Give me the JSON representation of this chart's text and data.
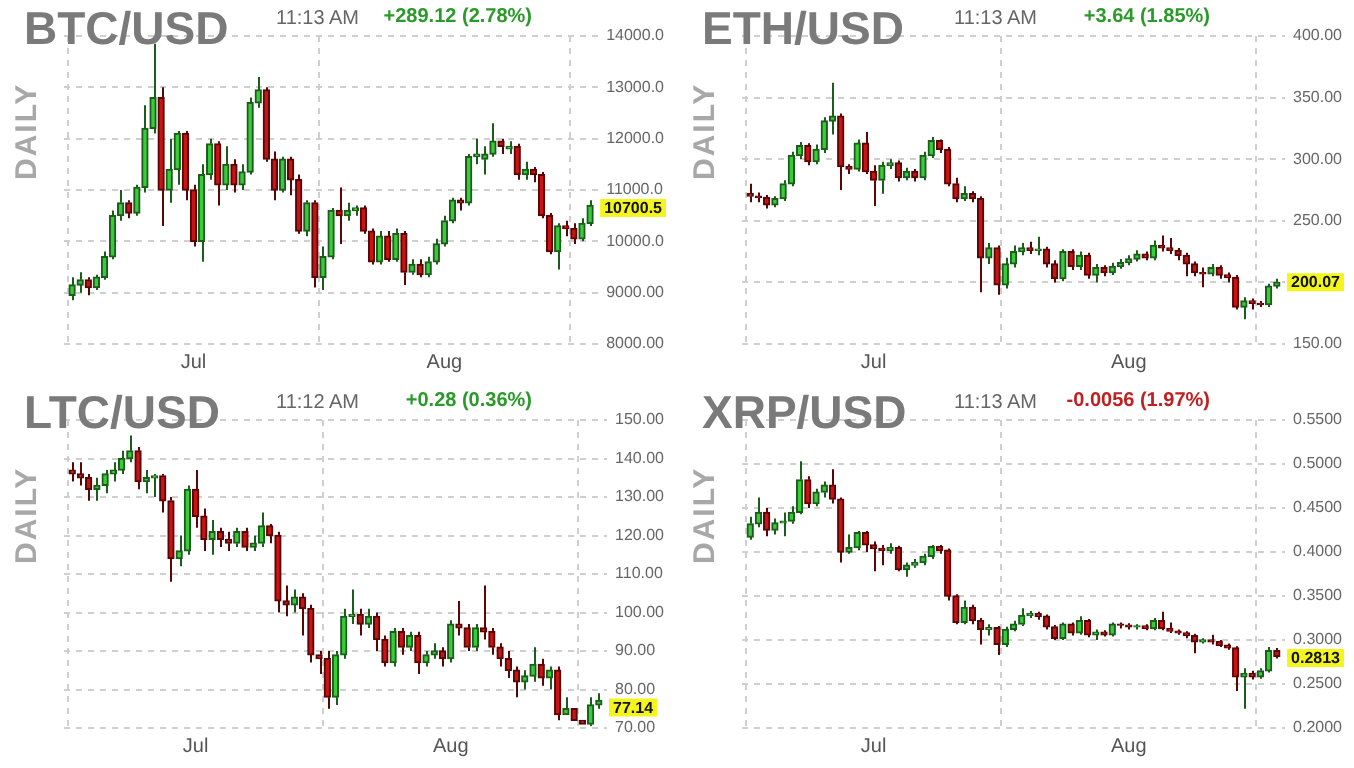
{
  "chart_data": [
    {
      "type": "candlestick",
      "title": "BTC/USD",
      "ylabel": "DAILY",
      "annotations": [
        "11:13 AM",
        "+289.12 (2.78%)",
        {
          "text": "10700.5",
          "x": "--08-19",
          "y": 10700.5
        }
      ],
      "x": [
        "--06-16",
        "--06-17",
        "--06-18",
        "--06-19",
        "--06-20",
        "--06-21",
        "--06-22",
        "--06-23",
        "--06-24",
        "--06-25",
        "--06-26",
        "--06-27",
        "--06-28",
        "--06-29",
        "--06-30",
        "--07-01",
        "--07-02",
        "--07-03",
        "--07-04",
        "--07-05",
        "--07-06",
        "--07-07",
        "--07-08",
        "--07-09",
        "--07-10",
        "--07-11",
        "--07-12",
        "--07-13",
        "--07-14",
        "--07-15",
        "--07-16",
        "--07-17",
        "--07-18",
        "--07-19",
        "--07-20",
        "--07-21",
        "--07-22",
        "--07-23",
        "--07-24",
        "--07-25",
        "--07-26",
        "--07-27",
        "--07-28",
        "--07-29",
        "--07-30",
        "--07-31",
        "--08-01",
        "--08-02",
        "--08-03",
        "--08-04",
        "--08-05",
        "--08-06",
        "--08-07",
        "--08-08",
        "--08-09",
        "--08-10",
        "--08-11",
        "--08-12",
        "--08-13",
        "--08-14",
        "--08-15",
        "--08-16",
        "--08-17",
        "--08-18",
        "--08-19"
      ],
      "ohlc": [
        [
          8950,
          9300,
          8850,
          9150
        ],
        [
          9150,
          9400,
          9000,
          9250
        ],
        [
          9250,
          9300,
          8950,
          9100
        ],
        [
          9100,
          9350,
          9050,
          9300
        ],
        [
          9300,
          9800,
          9250,
          9700
        ],
        [
          9700,
          10600,
          9650,
          10500
        ],
        [
          10500,
          11000,
          10400,
          10750
        ],
        [
          10750,
          10800,
          10450,
          10550
        ],
        [
          10550,
          11100,
          10500,
          11050
        ],
        [
          11050,
          12650,
          10950,
          12200
        ],
        [
          12200,
          13850,
          12100,
          12800
        ],
        [
          12800,
          13000,
          10300,
          11000
        ],
        [
          11000,
          12000,
          10750,
          11400
        ],
        [
          11400,
          12150,
          11100,
          12100
        ],
        [
          12100,
          12150,
          10800,
          11000
        ],
        [
          11000,
          11100,
          9900,
          10000
        ],
        [
          10000,
          11500,
          9600,
          11300
        ],
        [
          11300,
          12000,
          11200,
          11900
        ],
        [
          11900,
          11950,
          10700,
          11100
        ],
        [
          11100,
          11850,
          11000,
          11500
        ],
        [
          11500,
          11600,
          10950,
          11100
        ],
        [
          11100,
          11500,
          11000,
          11350
        ],
        [
          11350,
          12800,
          11300,
          12700
        ],
        [
          12700,
          13200,
          12600,
          12950
        ],
        [
          12950,
          13000,
          11550,
          11600
        ],
        [
          11600,
          11750,
          10800,
          11000
        ],
        [
          11000,
          11650,
          10950,
          11600
        ],
        [
          11600,
          11650,
          10900,
          11200
        ],
        [
          11200,
          11300,
          10150,
          10200
        ],
        [
          10200,
          10800,
          10100,
          10750
        ],
        [
          10750,
          10800,
          9100,
          9300
        ],
        [
          9300,
          9900,
          9050,
          9700
        ],
        [
          9700,
          10650,
          9650,
          10600
        ],
        [
          10600,
          11050,
          9950,
          10500
        ],
        [
          10500,
          10750,
          10400,
          10600
        ],
        [
          10600,
          10700,
          10500,
          10650
        ],
        [
          10650,
          10700,
          10150,
          10200
        ],
        [
          10200,
          10250,
          9550,
          9600
        ],
        [
          9600,
          10200,
          9550,
          10100
        ],
        [
          10100,
          10200,
          9600,
          9650
        ],
        [
          9650,
          10250,
          9600,
          10150
        ],
        [
          10150,
          10200,
          9150,
          9400
        ],
        [
          9400,
          9650,
          9350,
          9550
        ],
        [
          9550,
          9650,
          9300,
          9350
        ],
        [
          9350,
          9700,
          9300,
          9600
        ],
        [
          9600,
          10050,
          9550,
          9950
        ],
        [
          9950,
          10500,
          9900,
          10400
        ],
        [
          10400,
          10850,
          10350,
          10800
        ],
        [
          10800,
          10850,
          10600,
          10750
        ],
        [
          10750,
          11700,
          10700,
          11650
        ],
        [
          11650,
          12000,
          11500,
          11700
        ],
        [
          11600,
          11850,
          11300,
          11700
        ],
        [
          11700,
          12300,
          11650,
          11950
        ],
        [
          11950,
          12000,
          11700,
          11850
        ],
        [
          11800,
          11950,
          11700,
          11850
        ],
        [
          11850,
          11900,
          11200,
          11300
        ],
        [
          11300,
          11550,
          11200,
          11400
        ],
        [
          11400,
          11450,
          11150,
          11300
        ],
        [
          11300,
          11350,
          10450,
          10500
        ],
        [
          10500,
          10550,
          9750,
          9800
        ],
        [
          9800,
          10350,
          9450,
          10300
        ],
        [
          10300,
          10400,
          10100,
          10250
        ],
        [
          10250,
          10350,
          9950,
          10050
        ],
        [
          10050,
          10450,
          10000,
          10350
        ],
        [
          10350,
          10800,
          10300,
          10700.5
        ]
      ],
      "xlim": [
        "--06-15",
        "--08-20"
      ],
      "xticks": [
        {
          "value": "--07-01",
          "label": "Jul"
        },
        {
          "value": "--08-01",
          "label": "Aug"
        }
      ],
      "ylim": [
        8000,
        14000
      ],
      "yticks": [
        {
          "value": 8000,
          "label": "8000.00"
        },
        {
          "value": 9000,
          "label": "9000.00"
        },
        {
          "value": 10000,
          "label": "10000.0"
        },
        {
          "value": 11000,
          "label": "11000.0"
        },
        {
          "value": 12000,
          "label": "12000.0"
        },
        {
          "value": 13000,
          "label": "13000.0"
        },
        {
          "value": 14000,
          "label": "14000.0"
        }
      ],
      "grid": true
    },
    {
      "type": "candlestick",
      "title": "ETH/USD",
      "ylabel": "DAILY",
      "annotations": [
        "11:13 AM",
        "+3.64 (1.85%)",
        {
          "text": "200.07",
          "x": "--08-19",
          "y": 200.07
        }
      ],
      "x": [
        "--06-16",
        "--06-17",
        "--06-18",
        "--06-19",
        "--06-20",
        "--06-21",
        "--06-22",
        "--06-23",
        "--06-24",
        "--06-25",
        "--06-26",
        "--06-27",
        "--06-28",
        "--06-29",
        "--06-30",
        "--07-01",
        "--07-02",
        "--07-03",
        "--07-04",
        "--07-05",
        "--07-06",
        "--07-07",
        "--07-08",
        "--07-09",
        "--07-10",
        "--07-11",
        "--07-12",
        "--07-13",
        "--07-14",
        "--07-15",
        "--07-16",
        "--07-17",
        "--07-18",
        "--07-19",
        "--07-20",
        "--07-21",
        "--07-22",
        "--07-23",
        "--07-24",
        "--07-25",
        "--07-26",
        "--07-27",
        "--07-28",
        "--07-29",
        "--07-30",
        "--07-31",
        "--08-01",
        "--08-02",
        "--08-03",
        "--08-04",
        "--08-05",
        "--08-06",
        "--08-07",
        "--08-08",
        "--08-09",
        "--08-10",
        "--08-11",
        "--08-12",
        "--08-13",
        "--08-14",
        "--08-15",
        "--08-16",
        "--08-17",
        "--08-18",
        "--08-19"
      ],
      "ohlc": [
        [
          272,
          280,
          265,
          270
        ],
        [
          270,
          273,
          265,
          269
        ],
        [
          269,
          271,
          260,
          263
        ],
        [
          263,
          270,
          261,
          268
        ],
        [
          268,
          283,
          266,
          280
        ],
        [
          280,
          306,
          278,
          303
        ],
        [
          303,
          314,
          300,
          311
        ],
        [
          311,
          313,
          295,
          298
        ],
        [
          298,
          312,
          296,
          308
        ],
        [
          308,
          334,
          305,
          331
        ],
        [
          331,
          362,
          320,
          335
        ],
        [
          335,
          337,
          275,
          294
        ],
        [
          294,
          296,
          288,
          292
        ],
        [
          292,
          316,
          290,
          313
        ],
        [
          313,
          322,
          288,
          290
        ],
        [
          290,
          295,
          262,
          283
        ],
        [
          283,
          298,
          272,
          295
        ],
        [
          295,
          300,
          292,
          297
        ],
        [
          297,
          299,
          282,
          285
        ],
        [
          285,
          293,
          283,
          290
        ],
        [
          290,
          292,
          282,
          285
        ],
        [
          285,
          306,
          283,
          303
        ],
        [
          303,
          318,
          301,
          315
        ],
        [
          315,
          316,
          305,
          308
        ],
        [
          308,
          310,
          278,
          280
        ],
        [
          280,
          285,
          265,
          268
        ],
        [
          268,
          278,
          266,
          272
        ],
        [
          272,
          274,
          265,
          268
        ],
        [
          268,
          270,
          192,
          220
        ],
        [
          220,
          232,
          215,
          228
        ],
        [
          228,
          230,
          190,
          198
        ],
        [
          198,
          220,
          195,
          215
        ],
        [
          215,
          230,
          212,
          225
        ],
        [
          225,
          232,
          222,
          228
        ],
        [
          228,
          233,
          223,
          226
        ],
        [
          226,
          237,
          222,
          227
        ],
        [
          227,
          229,
          212,
          215
        ],
        [
          215,
          218,
          200,
          203
        ],
        [
          203,
          227,
          201,
          225
        ],
        [
          225,
          227,
          210,
          213
        ],
        [
          213,
          225,
          210,
          222
        ],
        [
          222,
          224,
          203,
          206
        ],
        [
          206,
          215,
          200,
          212
        ],
        [
          212,
          214,
          205,
          208
        ],
        [
          208,
          216,
          206,
          213
        ],
        [
          213,
          219,
          211,
          216
        ],
        [
          216,
          222,
          214,
          219
        ],
        [
          219,
          226,
          217,
          223
        ],
        [
          223,
          225,
          218,
          220
        ],
        [
          220,
          234,
          218,
          230
        ],
        [
          230,
          238,
          225,
          228
        ],
        [
          228,
          236,
          223,
          226
        ],
        [
          226,
          228,
          218,
          222
        ],
        [
          222,
          224,
          205,
          215
        ],
        [
          215,
          217,
          205,
          208
        ],
        [
          208,
          212,
          196,
          207
        ],
        [
          207,
          215,
          205,
          212
        ],
        [
          212,
          214,
          203,
          206
        ],
        [
          206,
          208,
          200,
          204
        ],
        [
          204,
          206,
          178,
          180
        ],
        [
          180,
          188,
          170,
          185
        ],
        [
          185,
          187,
          178,
          183
        ],
        [
          183,
          185,
          180,
          182
        ],
        [
          182,
          199,
          180,
          197
        ],
        [
          197,
          203,
          195,
          200.07
        ]
      ],
      "xlim": [
        "--06-15",
        "--08-20"
      ],
      "xticks": [
        {
          "value": "--07-01",
          "label": "Jul"
        },
        {
          "value": "--08-01",
          "label": "Aug"
        }
      ],
      "ylim": [
        150,
        400
      ],
      "yticks": [
        {
          "value": 150,
          "label": "150.00"
        },
        {
          "value": 200,
          "label": null
        },
        {
          "value": 250,
          "label": "250.00"
        },
        {
          "value": 300,
          "label": "300.00"
        },
        {
          "value": 350,
          "label": "350.00"
        },
        {
          "value": 400,
          "label": "400.00"
        }
      ],
      "grid": true
    },
    {
      "type": "candlestick",
      "title": "LTC/USD",
      "ylabel": "DAILY",
      "annotations": [
        "11:12 AM",
        "+0.28 (0.36%)",
        {
          "text": "77.14",
          "x": "--08-19",
          "y": 77.14
        }
      ],
      "x": [
        "--06-16",
        "--06-17",
        "--06-18",
        "--06-19",
        "--06-20",
        "--06-21",
        "--06-22",
        "--06-23",
        "--06-24",
        "--06-25",
        "--06-26",
        "--06-27",
        "--06-28",
        "--06-29",
        "--06-30",
        "--07-01",
        "--07-02",
        "--07-03",
        "--07-04",
        "--07-05",
        "--07-06",
        "--07-07",
        "--07-08",
        "--07-09",
        "--07-10",
        "--07-11",
        "--07-12",
        "--07-13",
        "--07-14",
        "--07-15",
        "--07-16",
        "--07-17",
        "--07-18",
        "--07-19",
        "--07-20",
        "--07-21",
        "--07-22",
        "--07-23",
        "--07-24",
        "--07-25",
        "--07-26",
        "--07-27",
        "--07-28",
        "--07-29",
        "--07-30",
        "--07-31",
        "--08-01",
        "--08-02",
        "--08-03",
        "--08-04",
        "--08-05",
        "--08-06",
        "--08-07",
        "--08-08",
        "--08-09",
        "--08-10",
        "--08-11",
        "--08-12",
        "--08-13",
        "--08-14",
        "--08-15",
        "--08-16",
        "--08-17",
        "--08-18",
        "--08-19"
      ],
      "ohlc": [
        [
          137,
          139,
          134,
          136
        ],
        [
          136,
          139,
          133,
          135
        ],
        [
          135,
          136,
          129,
          132
        ],
        [
          132,
          135,
          129,
          133
        ],
        [
          133,
          137,
          131,
          136
        ],
        [
          136,
          139,
          134,
          137
        ],
        [
          137,
          142,
          136,
          140
        ],
        [
          140,
          146,
          139,
          142
        ],
        [
          142,
          143,
          132,
          134
        ],
        [
          134,
          137,
          131,
          135
        ],
        [
          135,
          136,
          130,
          135.5
        ],
        [
          135.5,
          136,
          126,
          129
        ],
        [
          129,
          130,
          108,
          114
        ],
        [
          114,
          120,
          112,
          116
        ],
        [
          116,
          133,
          115,
          132
        ],
        [
          132,
          137,
          122,
          125
        ],
        [
          125,
          127,
          116,
          119
        ],
        [
          119,
          124,
          115,
          121
        ],
        [
          121,
          122,
          117,
          119
        ],
        [
          119,
          121,
          116,
          118
        ],
        [
          118,
          122,
          117,
          121
        ],
        [
          121,
          122,
          116,
          117
        ],
        [
          117,
          120,
          116,
          118
        ],
        [
          118,
          126,
          117,
          122.5
        ],
        [
          122.5,
          123,
          118,
          120
        ],
        [
          120,
          121,
          100,
          103
        ],
        [
          103,
          107,
          99,
          102
        ],
        [
          102,
          106,
          100,
          104
        ],
        [
          104,
          105,
          94,
          101
        ],
        [
          101,
          102,
          87,
          89
        ],
        [
          89,
          90,
          84,
          88
        ],
        [
          88,
          90,
          75,
          78
        ],
        [
          78,
          90,
          76,
          89
        ],
        [
          89,
          101,
          88,
          99
        ],
        [
          99,
          106,
          97,
          99.5
        ],
        [
          99.5,
          101,
          94,
          97
        ],
        [
          97,
          101,
          96,
          99
        ],
        [
          99,
          100,
          90,
          93
        ],
        [
          93,
          94,
          86,
          87
        ],
        [
          87,
          96,
          86,
          95
        ],
        [
          95,
          96,
          89,
          91
        ],
        [
          91,
          95,
          90,
          94
        ],
        [
          94,
          95,
          84,
          87
        ],
        [
          87,
          90,
          86,
          89
        ],
        [
          89,
          92,
          88,
          90
        ],
        [
          90,
          91,
          86,
          88
        ],
        [
          88,
          98,
          87,
          97
        ],
        [
          97,
          103,
          94,
          96
        ],
        [
          96,
          97,
          90,
          91
        ],
        [
          91,
          97,
          90,
          96
        ],
        [
          96,
          107,
          93,
          95
        ],
        [
          95,
          96,
          89,
          91
        ],
        [
          91,
          92,
          86,
          88
        ],
        [
          88,
          90,
          83,
          85
        ],
        [
          85,
          86,
          78,
          82
        ],
        [
          82,
          85,
          80,
          83.5
        ],
        [
          83.5,
          91,
          82,
          86.5
        ],
        [
          86.5,
          88,
          81,
          83
        ],
        [
          83,
          86,
          80,
          85
        ],
        [
          85,
          86,
          72,
          73.5
        ],
        [
          73.5,
          78,
          73.5,
          75
        ],
        [
          75,
          75,
          72,
          72
        ],
        [
          72,
          72,
          71,
          71
        ],
        [
          71,
          78,
          70.5,
          76
        ],
        [
          76,
          79,
          75,
          77.14
        ]
      ],
      "xlim": [
        "--06-15",
        "--08-20"
      ],
      "xticks": [
        {
          "value": "--07-01",
          "label": "Jul"
        },
        {
          "value": "--08-01",
          "label": "Aug"
        }
      ],
      "ylim": [
        70,
        150
      ],
      "yticks": [
        {
          "value": 70,
          "label": "70.00"
        },
        {
          "value": 80,
          "label": "80.00"
        },
        {
          "value": 90,
          "label": "90.00"
        },
        {
          "value": 100,
          "label": "100.00"
        },
        {
          "value": 110,
          "label": "110.00"
        },
        {
          "value": 120,
          "label": "120.00"
        },
        {
          "value": 130,
          "label": "130.00"
        },
        {
          "value": 140,
          "label": "140.00"
        },
        {
          "value": 150,
          "label": "150.00"
        }
      ],
      "grid": true
    },
    {
      "type": "candlestick",
      "title": "XRP/USD",
      "ylabel": "DAILY",
      "annotations": [
        "11:13 AM",
        "-0.0056 (1.97%)",
        {
          "text": "0.2813",
          "x": "--08-19",
          "y": 0.2813
        }
      ],
      "x": [
        "--06-16",
        "--06-17",
        "--06-18",
        "--06-19",
        "--06-20",
        "--06-21",
        "--06-22",
        "--06-23",
        "--06-24",
        "--06-25",
        "--06-26",
        "--06-27",
        "--06-28",
        "--06-29",
        "--06-30",
        "--07-01",
        "--07-02",
        "--07-03",
        "--07-04",
        "--07-05",
        "--07-06",
        "--07-07",
        "--07-08",
        "--07-09",
        "--07-10",
        "--07-11",
        "--07-12",
        "--07-13",
        "--07-14",
        "--07-15",
        "--07-16",
        "--07-17",
        "--07-18",
        "--07-19",
        "--07-20",
        "--07-21",
        "--07-22",
        "--07-23",
        "--07-24",
        "--07-25",
        "--07-26",
        "--07-27",
        "--07-28",
        "--07-29",
        "--07-30",
        "--07-31",
        "--08-01",
        "--08-02",
        "--08-03",
        "--08-04",
        "--08-05",
        "--08-06",
        "--08-07",
        "--08-08",
        "--08-09",
        "--08-10",
        "--08-11",
        "--08-12",
        "--08-13",
        "--08-14",
        "--08-15",
        "--08-16",
        "--08-17",
        "--08-18",
        "--08-19"
      ],
      "ohlc": [
        [
          0.417,
          0.44,
          0.414,
          0.432
        ],
        [
          0.432,
          0.462,
          0.428,
          0.445
        ],
        [
          0.445,
          0.45,
          0.418,
          0.425
        ],
        [
          0.425,
          0.438,
          0.42,
          0.433
        ],
        [
          0.433,
          0.445,
          0.418,
          0.435
        ],
        [
          0.435,
          0.452,
          0.432,
          0.445
        ],
        [
          0.445,
          0.503,
          0.443,
          0.482
        ],
        [
          0.482,
          0.486,
          0.45,
          0.455
        ],
        [
          0.455,
          0.472,
          0.452,
          0.468
        ],
        [
          0.468,
          0.48,
          0.462,
          0.476
        ],
        [
          0.476,
          0.494,
          0.455,
          0.46
        ],
        [
          0.46,
          0.462,
          0.388,
          0.4
        ],
        [
          0.4,
          0.42,
          0.398,
          0.405
        ],
        [
          0.405,
          0.424,
          0.402,
          0.422
        ],
        [
          0.422,
          0.424,
          0.4,
          0.408
        ],
        [
          0.408,
          0.412,
          0.378,
          0.404
        ],
        [
          0.404,
          0.408,
          0.385,
          0.402
        ],
        [
          0.402,
          0.41,
          0.398,
          0.405
        ],
        [
          0.405,
          0.407,
          0.378,
          0.38
        ],
        [
          0.38,
          0.388,
          0.372,
          0.385
        ],
        [
          0.385,
          0.392,
          0.382,
          0.388
        ],
        [
          0.388,
          0.398,
          0.385,
          0.395
        ],
        [
          0.395,
          0.408,
          0.392,
          0.406
        ],
        [
          0.406,
          0.408,
          0.398,
          0.402
        ],
        [
          0.402,
          0.404,
          0.345,
          0.35
        ],
        [
          0.35,
          0.352,
          0.318,
          0.32
        ],
        [
          0.32,
          0.345,
          0.318,
          0.337
        ],
        [
          0.337,
          0.34,
          0.318,
          0.322
        ],
        [
          0.322,
          0.325,
          0.295,
          0.312
        ],
        [
          0.312,
          0.318,
          0.305,
          0.314
        ],
        [
          0.314,
          0.316,
          0.283,
          0.295
        ],
        [
          0.295,
          0.315,
          0.292,
          0.312
        ],
        [
          0.312,
          0.322,
          0.31,
          0.318
        ],
        [
          0.318,
          0.336,
          0.316,
          0.328
        ],
        [
          0.328,
          0.333,
          0.325,
          0.33
        ],
        [
          0.33,
          0.332,
          0.323,
          0.327
        ],
        [
          0.327,
          0.329,
          0.312,
          0.315
        ],
        [
          0.315,
          0.317,
          0.3,
          0.302
        ],
        [
          0.302,
          0.32,
          0.3,
          0.318
        ],
        [
          0.318,
          0.32,
          0.305,
          0.308
        ],
        [
          0.308,
          0.327,
          0.306,
          0.322
        ],
        [
          0.322,
          0.324,
          0.303,
          0.306
        ],
        [
          0.306,
          0.312,
          0.3,
          0.309
        ],
        [
          0.309,
          0.311,
          0.304,
          0.306
        ],
        [
          0.306,
          0.32,
          0.304,
          0.318
        ],
        [
          0.318,
          0.32,
          0.313,
          0.317
        ],
        [
          0.317,
          0.319,
          0.312,
          0.315
        ],
        [
          0.315,
          0.318,
          0.312,
          0.316
        ],
        [
          0.316,
          0.318,
          0.311,
          0.313
        ],
        [
          0.313,
          0.325,
          0.311,
          0.322
        ],
        [
          0.322,
          0.332,
          0.311,
          0.313
        ],
        [
          0.313,
          0.32,
          0.308,
          0.31
        ],
        [
          0.31,
          0.312,
          0.306,
          0.308
        ],
        [
          0.308,
          0.31,
          0.302,
          0.305
        ],
        [
          0.305,
          0.307,
          0.285,
          0.298
        ],
        [
          0.298,
          0.302,
          0.296,
          0.3
        ],
        [
          0.3,
          0.306,
          0.295,
          0.298
        ],
        [
          0.298,
          0.3,
          0.292,
          0.294
        ],
        [
          0.294,
          0.296,
          0.289,
          0.291
        ],
        [
          0.291,
          0.293,
          0.242,
          0.258
        ],
        [
          0.258,
          0.268,
          0.222,
          0.262
        ],
        [
          0.262,
          0.265,
          0.255,
          0.258
        ],
        [
          0.258,
          0.268,
          0.256,
          0.265
        ],
        [
          0.265,
          0.292,
          0.263,
          0.288
        ],
        [
          0.288,
          0.291,
          0.279,
          0.2813
        ]
      ],
      "xlim": [
        "--06-15",
        "--08-20"
      ],
      "xticks": [
        {
          "value": "--07-01",
          "label": "Jul"
        },
        {
          "value": "--08-01",
          "label": "Aug"
        }
      ],
      "ylim": [
        0.2,
        0.55
      ],
      "yticks": [
        {
          "value": 0.2,
          "label": "0.2000"
        },
        {
          "value": 0.25,
          "label": "0.2500"
        },
        {
          "value": 0.3,
          "label": "0.3000"
        },
        {
          "value": 0.35,
          "label": "0.3500"
        },
        {
          "value": 0.4,
          "label": "0.4000"
        },
        {
          "value": 0.45,
          "label": "0.4500"
        },
        {
          "value": 0.5,
          "label": "0.5000"
        },
        {
          "value": 0.55,
          "label": "0.5500"
        }
      ],
      "grid": true
    }
  ]
}
